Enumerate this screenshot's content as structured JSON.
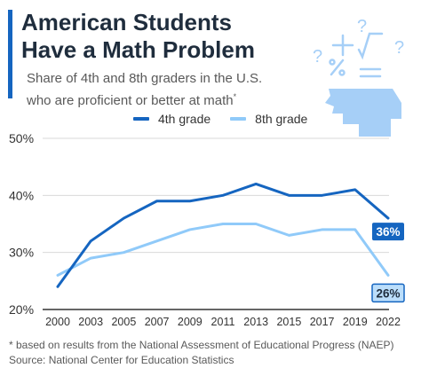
{
  "header": {
    "title_line1": "American Students",
    "title_line2": "Have a Math Problem",
    "subtitle_line1": "Share of 4th and 8th graders in the U.S.",
    "subtitle_line2": "who are proficient or better at math",
    "subtitle_mark": "*"
  },
  "colors": {
    "accent": "#1565c0",
    "grade4": "#1565c0",
    "grade8": "#90caf9",
    "illustration": "#a6cff7"
  },
  "illustration": {
    "icon": "head-with-math-symbols-icon",
    "symbols": [
      "?",
      "+",
      "√",
      "?",
      "?",
      "%",
      "="
    ]
  },
  "chart_data": {
    "type": "line",
    "title": "American Students Have a Math Problem",
    "ylabel": "",
    "xlabel": "",
    "x": [
      "2000",
      "2003",
      "2005",
      "2007",
      "2009",
      "2011",
      "2013",
      "2015",
      "2017",
      "2019",
      "2022"
    ],
    "ylim": [
      20,
      50
    ],
    "yticks": [
      "20%",
      "30%",
      "40%",
      "50%"
    ],
    "grid": true,
    "legend_position": "top",
    "series": [
      {
        "name": "4th grade",
        "values": [
          24,
          32,
          36,
          39,
          39,
          40,
          42,
          40,
          40,
          41,
          36
        ]
      },
      {
        "name": "8th grade",
        "values": [
          26,
          29,
          30,
          32,
          34,
          35,
          35,
          33,
          34,
          34,
          26
        ]
      }
    ],
    "end_labels": [
      "36%",
      "26%"
    ]
  },
  "footnote": {
    "note": "* based on results from the National Assessment of Educational Progress (NAEP)",
    "source": "Source: National Center for Education Statistics"
  }
}
